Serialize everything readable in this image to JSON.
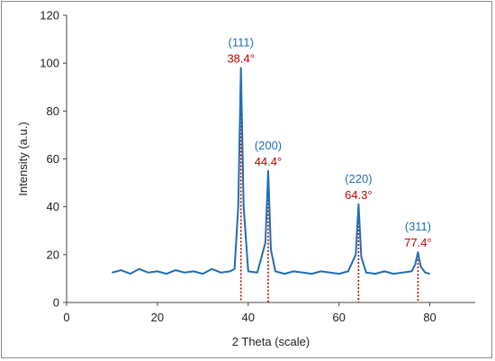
{
  "chart_data": {
    "type": "line",
    "title": "",
    "xlabel": "2 Theta (scale)",
    "ylabel": "Intensity (a.u.)",
    "xlim": [
      0,
      90
    ],
    "ylim": [
      0,
      120
    ],
    "xticks": [
      0,
      20,
      40,
      60,
      80
    ],
    "yticks": [
      0,
      20,
      40,
      60,
      80,
      100,
      120
    ],
    "grid": false,
    "series": [
      {
        "color": "#1f6fb5",
        "x": [
          10,
          12,
          14,
          16,
          18,
          20,
          22,
          24,
          26,
          28,
          30,
          32,
          34,
          36,
          37,
          37.8,
          38.4,
          39.0,
          40,
          42,
          43.8,
          44.4,
          45.0,
          46,
          48,
          50,
          52,
          54,
          56,
          58,
          60,
          62,
          63.7,
          64.3,
          64.9,
          66,
          68,
          70,
          72,
          74,
          76,
          76.8,
          77.4,
          78.0,
          79,
          80
        ],
        "y": [
          12.5,
          13.5,
          12.0,
          14.0,
          12.5,
          13.0,
          12.0,
          13.5,
          12.5,
          13.0,
          12.0,
          14.0,
          12.5,
          13.0,
          14.0,
          40,
          98,
          40,
          13.0,
          12.5,
          25,
          55,
          22,
          13.0,
          12.0,
          13.0,
          12.5,
          12.0,
          13.0,
          12.5,
          12.0,
          13.0,
          20,
          41,
          19,
          12.5,
          12.0,
          13.0,
          12.0,
          12.5,
          13.0,
          16,
          21,
          15,
          12.5,
          12.0
        ]
      }
    ],
    "peaks": [
      {
        "x": 38.4,
        "y": 98,
        "hkl": "(111)",
        "label": "38.4°"
      },
      {
        "x": 44.4,
        "y": 55,
        "hkl": "(200)",
        "label": "44.4°"
      },
      {
        "x": 64.3,
        "y": 41,
        "hkl": "(220)",
        "label": "64.3°"
      },
      {
        "x": 77.4,
        "y": 21,
        "hkl": "(311)",
        "label": "77.4°"
      }
    ],
    "colors": {
      "line": "#1f6fb5",
      "hkl": "#1f6fb5",
      "angle": "#c00000",
      "marker": "#c00000"
    }
  }
}
